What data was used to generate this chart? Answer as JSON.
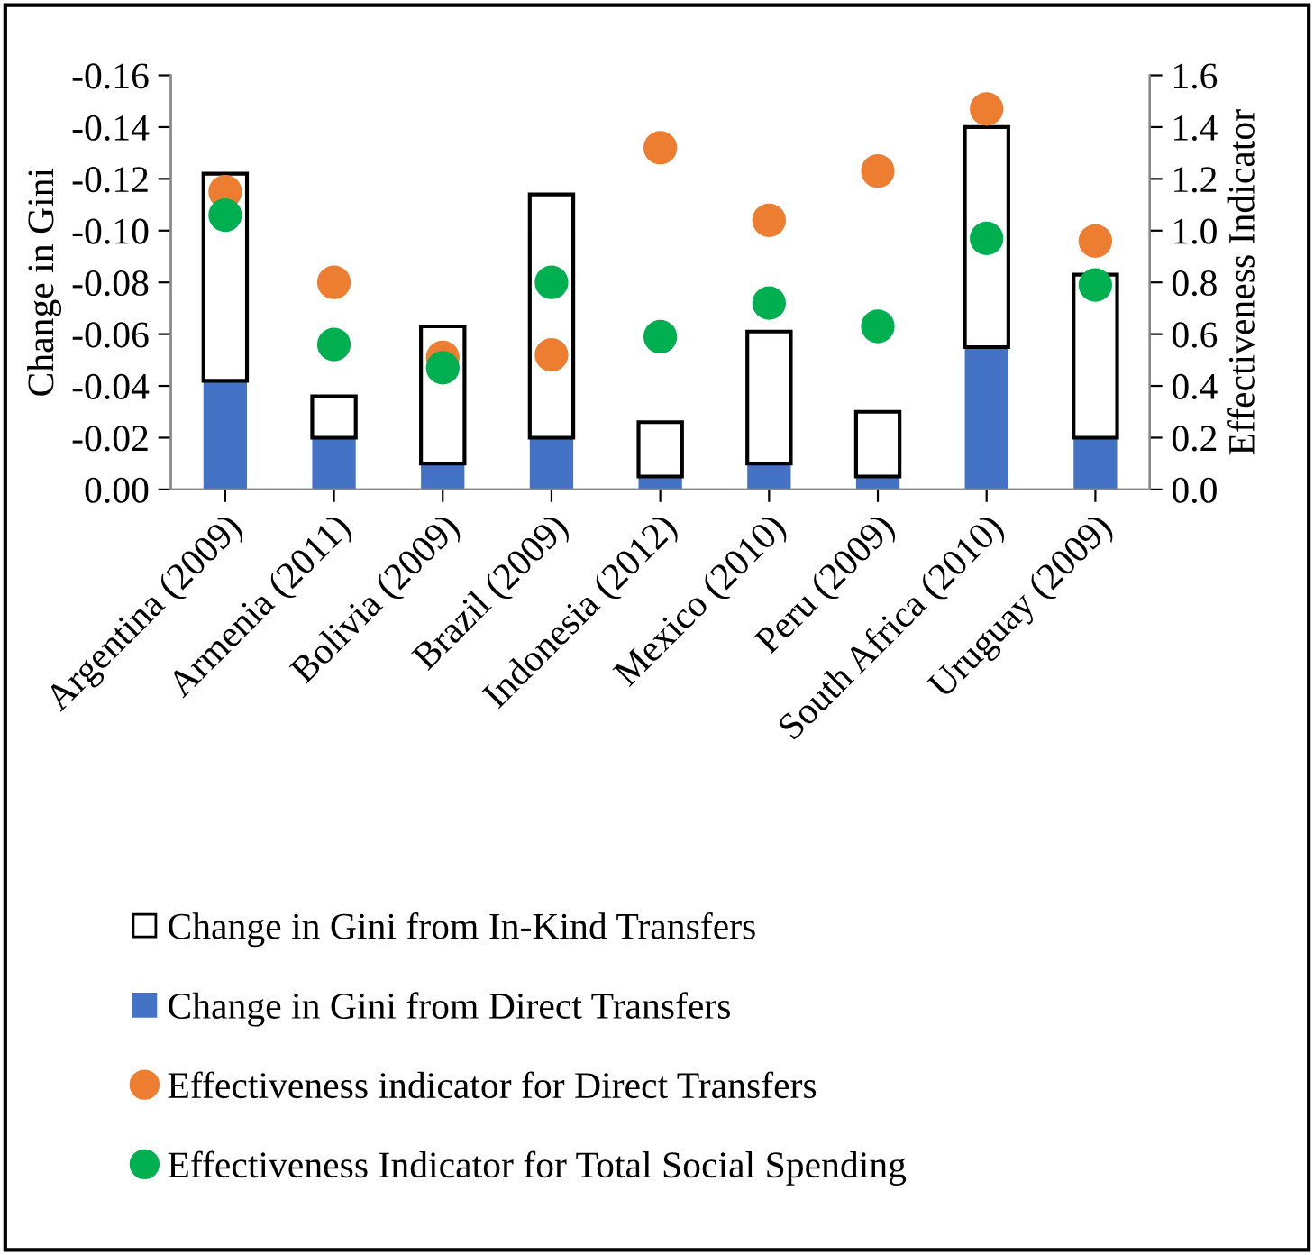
{
  "chart_data": {
    "type": "bar",
    "stacked": true,
    "categories": [
      "Argentina (2009)",
      "Armenia (2011)",
      "Bolivia (2009)",
      "Brazil (2009)",
      "Indonesia (2012)",
      "Mexico (2010)",
      "Peru (2009)",
      "South Africa (2010)",
      "Uruguay (2009)"
    ],
    "series": [
      {
        "name": "Change in Gini from Direct Transfers",
        "color": "#4472c4",
        "values": [
          -0.042,
          -0.02,
          -0.01,
          -0.02,
          -0.005,
          -0.01,
          -0.005,
          -0.055,
          -0.02
        ]
      },
      {
        "name": "Change in Gini from In-Kind Transfers",
        "color": "#ffffff",
        "values": [
          -0.08,
          -0.016,
          -0.053,
          -0.094,
          -0.021,
          -0.051,
          -0.025,
          -0.085,
          -0.063
        ]
      },
      {
        "name": "Effectiveness indicator for Direct Transfers",
        "type": "scatter",
        "axis": "y2",
        "color": "#ed7d31",
        "values": [
          1.15,
          0.8,
          0.51,
          0.52,
          1.32,
          1.04,
          1.23,
          1.47,
          0.96
        ]
      },
      {
        "name": "Effectiveness Indicator for Total Social Spending",
        "type": "scatter",
        "axis": "y2",
        "color": "#00b050",
        "values": [
          1.06,
          0.56,
          0.47,
          0.8,
          0.59,
          0.72,
          0.63,
          0.97,
          0.79
        ]
      }
    ],
    "ylabel": "Change in Gini",
    "y2label": "Effectiveness Indicator",
    "ylim": [
      0,
      -0.16
    ],
    "yticks": [
      {
        "value": 0,
        "label": "0.00"
      },
      {
        "value": -0.02,
        "label": "-0.02"
      },
      {
        "value": -0.04,
        "label": "-0.04"
      },
      {
        "value": -0.06,
        "label": "-0.06"
      },
      {
        "value": -0.08,
        "label": "-0.08"
      },
      {
        "value": -0.1,
        "label": "-0.10"
      },
      {
        "value": -0.12,
        "label": "-0.12"
      },
      {
        "value": -0.14,
        "label": "-0.14"
      },
      {
        "value": -0.16,
        "label": "-0.16"
      }
    ],
    "y2lim": [
      0,
      1.6
    ],
    "y2ticks": [
      {
        "value": 0,
        "label": "0.0"
      },
      0.2,
      0.4,
      0.6,
      0.8,
      {
        "value": 1,
        "label": "1.0"
      },
      1.2,
      1.4,
      1.6
    ],
    "marker": "circle",
    "legend": "bottom",
    "grid": false
  }
}
